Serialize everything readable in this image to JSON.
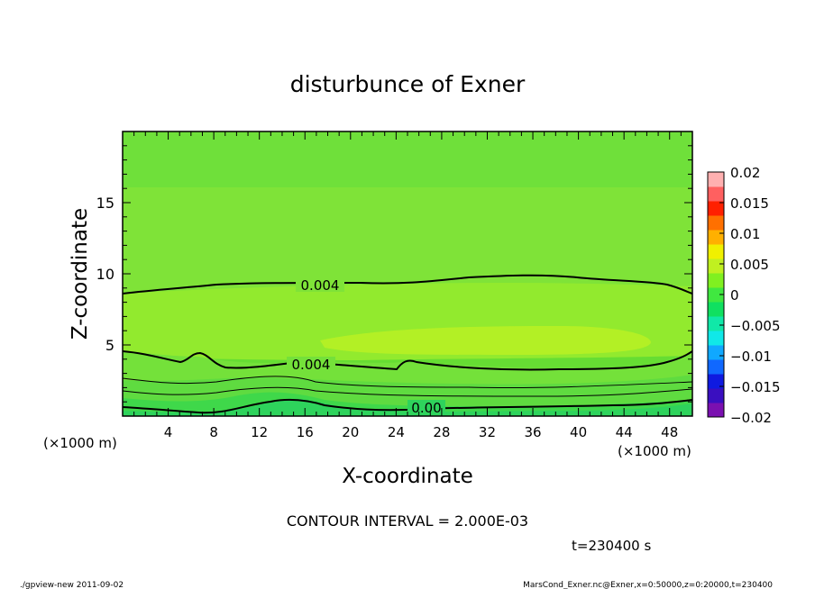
{
  "chart_data": {
    "type": "contour",
    "title": "disturbunce of Exner",
    "xlabel": "X-coordinate",
    "ylabel": "Z-coordinate",
    "x_unit": "(×1000 m)",
    "y_unit": "(×1000 m)",
    "xlim": [
      0,
      50
    ],
    "ylim": [
      0,
      20
    ],
    "x_ticks": [
      "4",
      "8",
      "12",
      "16",
      "20",
      "24",
      "28",
      "32",
      "36",
      "40",
      "44",
      "48"
    ],
    "y_ticks": [
      "5",
      "10",
      "15"
    ],
    "colorbar": {
      "ticks": [
        "0.02",
        "0.015",
        "0.01",
        "0.005",
        "0",
        "−0.005",
        "−0.01",
        "−0.015",
        "−0.02"
      ],
      "min": -0.02,
      "max": 0.02,
      "colors": [
        "#7a10b0",
        "#3a0fc0",
        "#0f1ae0",
        "#1068ff",
        "#10a8ff",
        "#10e8e8",
        "#10e8a8",
        "#10e060",
        "#40e840",
        "#80f020",
        "#c0f020",
        "#f0f000",
        "#ffb000",
        "#ff7000",
        "#ff2000",
        "#ff6060",
        "#ffb0b0"
      ]
    },
    "contour_labels": [
      "0.004",
      "0.004",
      "0.00"
    ],
    "contour_interval_text": "CONTOUR INTERVAL = 2.000E-03",
    "time_text": "t=230400 s"
  },
  "footer": {
    "left": "./gpview-new 2011-09-02",
    "right": "MarsCond_Exner.nc@Exner,x=0:50000,z=0:20000,t=230400"
  }
}
